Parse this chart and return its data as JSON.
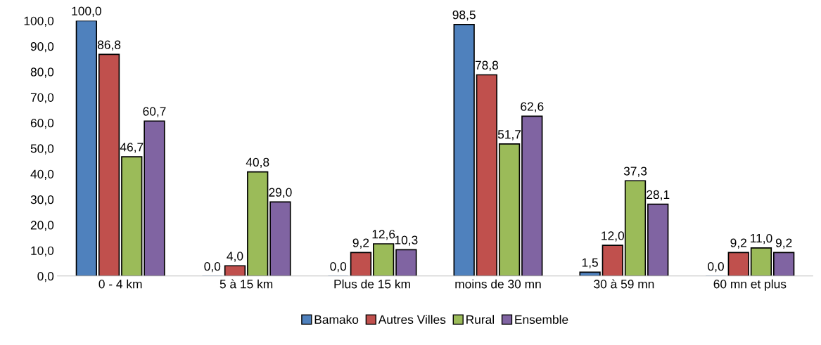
{
  "chart_data": {
    "type": "bar",
    "categories": [
      "0 - 4 km",
      "5 à 15 km",
      "Plus de 15 km",
      "moins de 30 mn",
      "30 à 59 mn",
      "60 mn et plus"
    ],
    "series": [
      {
        "name": "Bamako",
        "color": "#4f81bd",
        "values": [
          100.0,
          0.0,
          0.0,
          98.5,
          1.5,
          0.0
        ],
        "value_labels": [
          "100,0",
          "0,0",
          "0,0",
          "98,5",
          "1,5",
          "0,0"
        ]
      },
      {
        "name": "Autres Villes",
        "color": "#c0504d",
        "values": [
          86.8,
          4.0,
          9.2,
          78.8,
          12.0,
          9.2
        ],
        "value_labels": [
          "86,8",
          "4,0",
          "9,2",
          "78,8",
          "12,0",
          "9,2"
        ]
      },
      {
        "name": "Rural",
        "color": "#9bbb59",
        "values": [
          46.7,
          40.8,
          12.6,
          51.7,
          37.3,
          11.0
        ],
        "value_labels": [
          "46,7",
          "40,8",
          "12,6",
          "51,7",
          "37,3",
          "11,0"
        ]
      },
      {
        "name": "Ensemble",
        "color": "#8064a2",
        "values": [
          60.7,
          29.0,
          10.3,
          62.6,
          28.1,
          9.2
        ],
        "value_labels": [
          "60,7",
          "29,0",
          "10,3",
          "62,6",
          "28,1",
          "9,2"
        ]
      }
    ],
    "ylim": [
      0,
      100
    ],
    "yticks": [
      {
        "value": 0,
        "label": "0,0"
      },
      {
        "value": 10,
        "label": "10,0"
      },
      {
        "value": 20,
        "label": "20,0"
      },
      {
        "value": 30,
        "label": "30,0"
      },
      {
        "value": 40,
        "label": "40,0"
      },
      {
        "value": 50,
        "label": "50,0"
      },
      {
        "value": 60,
        "label": "60,0"
      },
      {
        "value": 70,
        "label": "70,0"
      },
      {
        "value": 80,
        "label": "80,0"
      },
      {
        "value": 90,
        "label": "90,0"
      },
      {
        "value": 100,
        "label": "100,0"
      }
    ],
    "grid": false,
    "legend": "bottom"
  }
}
